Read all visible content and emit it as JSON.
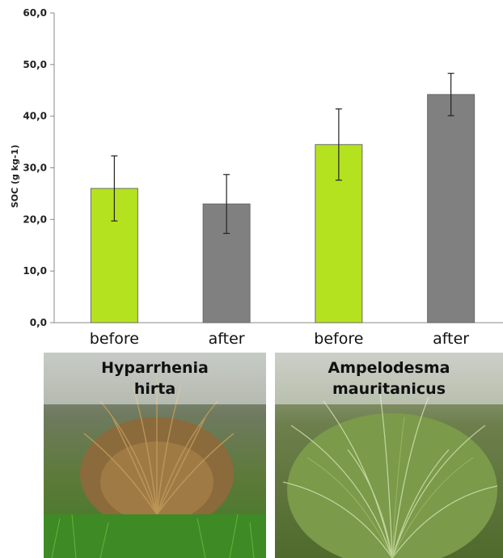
{
  "chart_data": {
    "type": "bar",
    "categories": [
      "before",
      "after",
      "before",
      "after"
    ],
    "values": [
      26.0,
      23.0,
      34.5,
      44.2
    ],
    "errors": [
      6.3,
      5.7,
      6.9,
      4.1
    ],
    "colors": [
      "#b5e21f",
      "#808080",
      "#b5e21f",
      "#808080"
    ],
    "ylabel": "SOC  (g kg-1)",
    "yticks": [
      "0,0",
      "10,0",
      "20,0",
      "30,0",
      "40,0",
      "50,0",
      "60,0"
    ],
    "ylim": [
      0,
      60
    ],
    "grid": false
  },
  "panels": [
    {
      "species_line1": "Hyparrhenia",
      "species_line2": "hirta"
    },
    {
      "species_line1": "Ampelodesma",
      "species_line2": "mauritanicus"
    }
  ]
}
